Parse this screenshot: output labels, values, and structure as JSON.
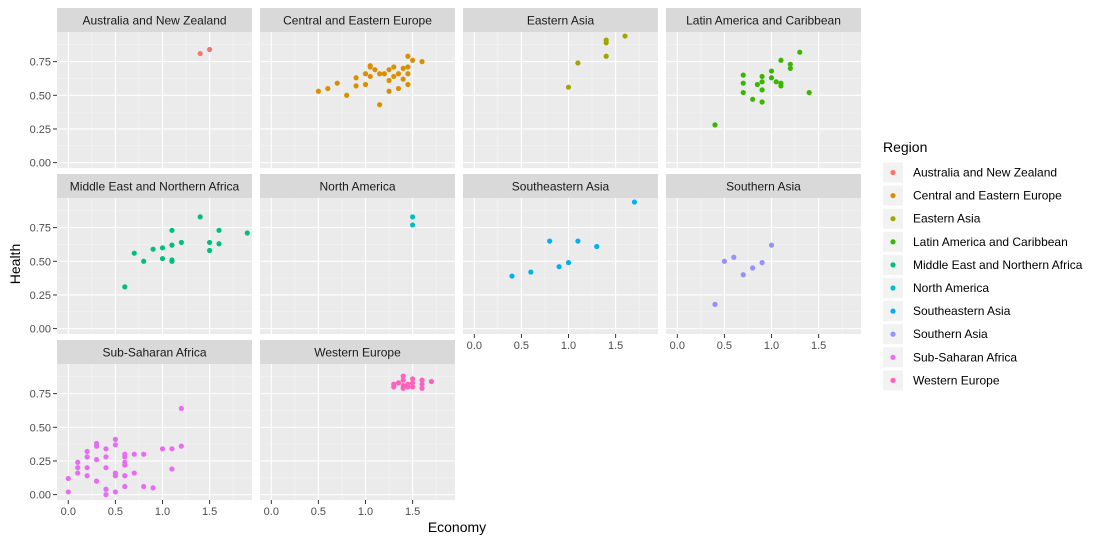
{
  "chart_data": {
    "type": "scatter",
    "xlabel": "Economy",
    "ylabel": "Health",
    "xlim": [
      -0.12,
      1.95
    ],
    "ylim": [
      -0.04,
      0.97
    ],
    "x_ticks": [
      0.0,
      0.5,
      1.0,
      1.5
    ],
    "x_tick_labels": [
      "0.0",
      "0.5",
      "1.0",
      "1.5"
    ],
    "y_ticks": [
      0.0,
      0.25,
      0.5,
      0.75
    ],
    "y_tick_labels": [
      "0.00",
      "0.25",
      "0.50",
      "0.75"
    ],
    "grid": true,
    "legend_position": "right",
    "legend_title": "Region",
    "facets": [
      {
        "name": "Australia and New Zealand",
        "color": "#F8766D",
        "points": [
          [
            1.4,
            0.81
          ],
          [
            1.5,
            0.84
          ]
        ]
      },
      {
        "name": "Central and Eastern Europe",
        "color": "#D89000",
        "points": [
          [
            0.5,
            0.53
          ],
          [
            0.6,
            0.55
          ],
          [
            0.7,
            0.59
          ],
          [
            0.8,
            0.5
          ],
          [
            0.9,
            0.57
          ],
          [
            0.9,
            0.63
          ],
          [
            1.0,
            0.58
          ],
          [
            1.0,
            0.66
          ],
          [
            1.05,
            0.71
          ],
          [
            1.05,
            0.72
          ],
          [
            1.05,
            0.64
          ],
          [
            1.1,
            0.69
          ],
          [
            1.15,
            0.66
          ],
          [
            1.15,
            0.43
          ],
          [
            1.2,
            0.66
          ],
          [
            1.25,
            0.69
          ],
          [
            1.25,
            0.61
          ],
          [
            1.25,
            0.53
          ],
          [
            1.3,
            0.64
          ],
          [
            1.3,
            0.71
          ],
          [
            1.35,
            0.66
          ],
          [
            1.35,
            0.55
          ],
          [
            1.4,
            0.62
          ],
          [
            1.4,
            0.7
          ],
          [
            1.45,
            0.71
          ],
          [
            1.45,
            0.79
          ],
          [
            1.45,
            0.66
          ],
          [
            1.45,
            0.58
          ],
          [
            1.5,
            0.76
          ],
          [
            1.6,
            0.75
          ]
        ]
      },
      {
        "name": "Eastern Asia",
        "color": "#A3A500",
        "points": [
          [
            1.0,
            0.56
          ],
          [
            1.1,
            0.74
          ],
          [
            1.4,
            0.79
          ],
          [
            1.4,
            0.89
          ],
          [
            1.4,
            0.91
          ],
          [
            1.6,
            0.94
          ]
        ]
      },
      {
        "name": "Latin America and Caribbean",
        "color": "#39B600",
        "points": [
          [
            0.4,
            0.28
          ],
          [
            0.7,
            0.65
          ],
          [
            0.7,
            0.59
          ],
          [
            0.7,
            0.52
          ],
          [
            0.8,
            0.47
          ],
          [
            0.85,
            0.58
          ],
          [
            0.9,
            0.45
          ],
          [
            0.9,
            0.54
          ],
          [
            0.9,
            0.6
          ],
          [
            0.9,
            0.64
          ],
          [
            1.0,
            0.68
          ],
          [
            1.0,
            0.63
          ],
          [
            1.05,
            0.6
          ],
          [
            1.1,
            0.59
          ],
          [
            1.1,
            0.57
          ],
          [
            1.1,
            0.76
          ],
          [
            1.2,
            0.73
          ],
          [
            1.2,
            0.7
          ],
          [
            1.3,
            0.82
          ],
          [
            1.4,
            0.52
          ]
        ]
      },
      {
        "name": "Middle East and Northern Africa",
        "color": "#00BF7D",
        "points": [
          [
            0.6,
            0.31
          ],
          [
            0.7,
            0.56
          ],
          [
            0.8,
            0.5
          ],
          [
            0.9,
            0.59
          ],
          [
            1.0,
            0.6
          ],
          [
            1.0,
            0.52
          ],
          [
            1.1,
            0.62
          ],
          [
            1.1,
            0.73
          ],
          [
            1.1,
            0.5
          ],
          [
            1.1,
            0.51
          ],
          [
            1.2,
            0.64
          ],
          [
            1.4,
            0.83
          ],
          [
            1.5,
            0.64
          ],
          [
            1.5,
            0.58
          ],
          [
            1.6,
            0.73
          ],
          [
            1.6,
            0.63
          ],
          [
            1.9,
            0.71
          ]
        ]
      },
      {
        "name": "North America",
        "color": "#00BFC4",
        "points": [
          [
            1.5,
            0.83
          ],
          [
            1.5,
            0.77
          ]
        ]
      },
      {
        "name": "Southeastern Asia",
        "color": "#00B0F6",
        "points": [
          [
            0.4,
            0.39
          ],
          [
            0.6,
            0.42
          ],
          [
            0.8,
            0.65
          ],
          [
            0.9,
            0.46
          ],
          [
            1.0,
            0.49
          ],
          [
            1.1,
            0.65
          ],
          [
            1.3,
            0.61
          ],
          [
            1.7,
            0.94
          ]
        ]
      },
      {
        "name": "Southern Asia",
        "color": "#9590FF",
        "points": [
          [
            0.4,
            0.18
          ],
          [
            0.5,
            0.5
          ],
          [
            0.6,
            0.53
          ],
          [
            0.7,
            0.4
          ],
          [
            0.8,
            0.45
          ],
          [
            0.9,
            0.49
          ],
          [
            1.0,
            0.62
          ]
        ]
      },
      {
        "name": "Sub-Saharan Africa",
        "color": "#E76BF3",
        "points": [
          [
            0.0,
            0.02
          ],
          [
            0.0,
            0.12
          ],
          [
            0.1,
            0.16
          ],
          [
            0.1,
            0.2
          ],
          [
            0.1,
            0.24
          ],
          [
            0.2,
            0.14
          ],
          [
            0.2,
            0.2
          ],
          [
            0.2,
            0.28
          ],
          [
            0.2,
            0.32
          ],
          [
            0.3,
            0.1
          ],
          [
            0.3,
            0.26
          ],
          [
            0.3,
            0.36
          ],
          [
            0.3,
            0.38
          ],
          [
            0.4,
            0.2
          ],
          [
            0.4,
            0.28
          ],
          [
            0.4,
            0.34
          ],
          [
            0.4,
            0.04
          ],
          [
            0.4,
            0.0
          ],
          [
            0.5,
            0.41
          ],
          [
            0.5,
            0.37
          ],
          [
            0.5,
            0.16
          ],
          [
            0.5,
            0.14
          ],
          [
            0.5,
            0.02
          ],
          [
            0.6,
            0.3
          ],
          [
            0.6,
            0.28
          ],
          [
            0.6,
            0.24
          ],
          [
            0.6,
            0.22
          ],
          [
            0.6,
            0.14
          ],
          [
            0.6,
            0.06
          ],
          [
            0.7,
            0.3
          ],
          [
            0.7,
            0.16
          ],
          [
            0.8,
            0.3
          ],
          [
            0.8,
            0.06
          ],
          [
            0.9,
            0.05
          ],
          [
            1.0,
            0.34
          ],
          [
            1.1,
            0.34
          ],
          [
            1.1,
            0.19
          ],
          [
            1.2,
            0.36
          ],
          [
            1.2,
            0.64
          ]
        ]
      },
      {
        "name": "Western Europe",
        "color": "#FF62BC",
        "points": [
          [
            1.3,
            0.8
          ],
          [
            1.3,
            0.82
          ],
          [
            1.35,
            0.83
          ],
          [
            1.4,
            0.79
          ],
          [
            1.4,
            0.81
          ],
          [
            1.4,
            0.85
          ],
          [
            1.4,
            0.88
          ],
          [
            1.45,
            0.8
          ],
          [
            1.45,
            0.82
          ],
          [
            1.5,
            0.8
          ],
          [
            1.5,
            0.83
          ],
          [
            1.5,
            0.86
          ],
          [
            1.6,
            0.79
          ],
          [
            1.6,
            0.82
          ],
          [
            1.6,
            0.85
          ],
          [
            1.7,
            0.84
          ]
        ]
      }
    ]
  }
}
